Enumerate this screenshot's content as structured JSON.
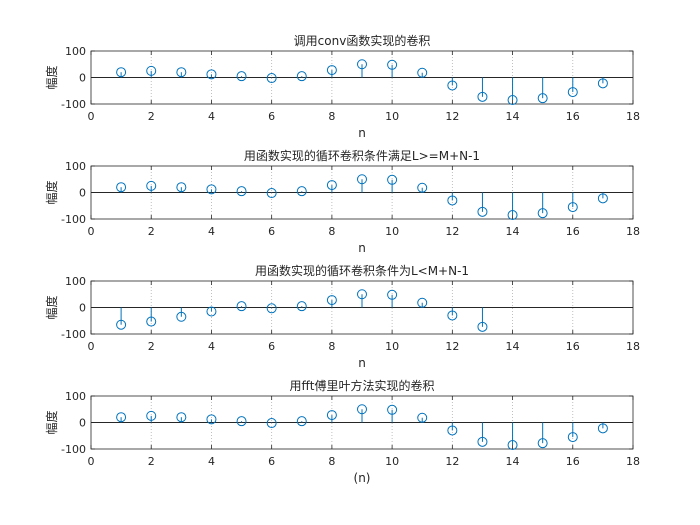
{
  "chart_data": [
    {
      "type": "stem",
      "title": "调用conv函数实现的卷积",
      "xlabel": "n",
      "ylabel": "幅度",
      "xlim": [
        0,
        18
      ],
      "ylim": [
        -100,
        100
      ],
      "xticks": [
        0,
        2,
        4,
        6,
        8,
        10,
        12,
        14,
        16,
        18
      ],
      "yticks": [
        -100,
        0,
        100
      ],
      "x": [
        1,
        2,
        3,
        4,
        5,
        6,
        7,
        8,
        9,
        10,
        11,
        12,
        13,
        14,
        15,
        16,
        17
      ],
      "values": [
        20,
        25,
        20,
        12,
        5,
        -2,
        5,
        28,
        50,
        48,
        18,
        -30,
        -73,
        -85,
        -78,
        -55,
        -22
      ]
    },
    {
      "type": "stem",
      "title": "用函数实现的循环卷积条件满足L>=M+N-1",
      "xlabel": "n",
      "ylabel": "幅度",
      "xlim": [
        0,
        18
      ],
      "ylim": [
        -100,
        100
      ],
      "xticks": [
        0,
        2,
        4,
        6,
        8,
        10,
        12,
        14,
        16,
        18
      ],
      "yticks": [
        -100,
        0,
        100
      ],
      "x": [
        1,
        2,
        3,
        4,
        5,
        6,
        7,
        8,
        9,
        10,
        11,
        12,
        13,
        14,
        15,
        16,
        17
      ],
      "values": [
        20,
        25,
        20,
        12,
        5,
        -2,
        5,
        28,
        50,
        48,
        18,
        -30,
        -73,
        -85,
        -78,
        -55,
        -22
      ]
    },
    {
      "type": "stem",
      "title": "用函数实现的循环卷积条件为L<M+N-1",
      "xlabel": "n",
      "ylabel": "幅度",
      "xlim": [
        0,
        18
      ],
      "ylim": [
        -100,
        100
      ],
      "xticks": [
        0,
        2,
        4,
        6,
        8,
        10,
        12,
        14,
        16,
        18
      ],
      "yticks": [
        -100,
        0,
        100
      ],
      "x": [
        1,
        2,
        3,
        4,
        5,
        6,
        7,
        8,
        9,
        10,
        11,
        12,
        13
      ],
      "values": [
        -65,
        -53,
        -35,
        -15,
        5,
        -3,
        5,
        28,
        50,
        48,
        18,
        -30,
        -73
      ]
    },
    {
      "type": "stem",
      "title": "用fft傅里叶方法实现的卷积",
      "xlabel": "(n)",
      "ylabel": "幅度",
      "xlim": [
        0,
        18
      ],
      "ylim": [
        -100,
        100
      ],
      "xticks": [
        0,
        2,
        4,
        6,
        8,
        10,
        12,
        14,
        16,
        18
      ],
      "yticks": [
        -100,
        0,
        100
      ],
      "x": [
        1,
        2,
        3,
        4,
        5,
        6,
        7,
        8,
        9,
        10,
        11,
        12,
        13,
        14,
        15,
        16,
        17
      ],
      "values": [
        20,
        25,
        20,
        12,
        5,
        -2,
        5,
        28,
        50,
        48,
        18,
        -30,
        -73,
        -85,
        -78,
        -55,
        -22
      ]
    }
  ],
  "colors": {
    "stem": "#0072BD",
    "axis": "#262626",
    "grid": "#b0b0b0",
    "background": "#ffffff"
  }
}
